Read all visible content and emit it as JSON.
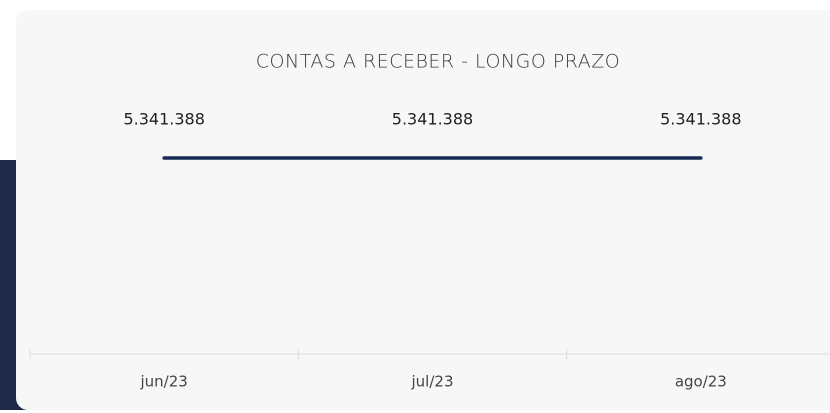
{
  "chart_data": {
    "type": "line",
    "title": "CONTAS A RECEBER - LONGO PRAZO",
    "categories": [
      "jun/23",
      "jul/23",
      "ago/23"
    ],
    "values": [
      5341388,
      5341388,
      5341388
    ],
    "value_labels": [
      "5.341.388",
      "5.341.388",
      "5.341.388"
    ],
    "color": "#152a52"
  }
}
